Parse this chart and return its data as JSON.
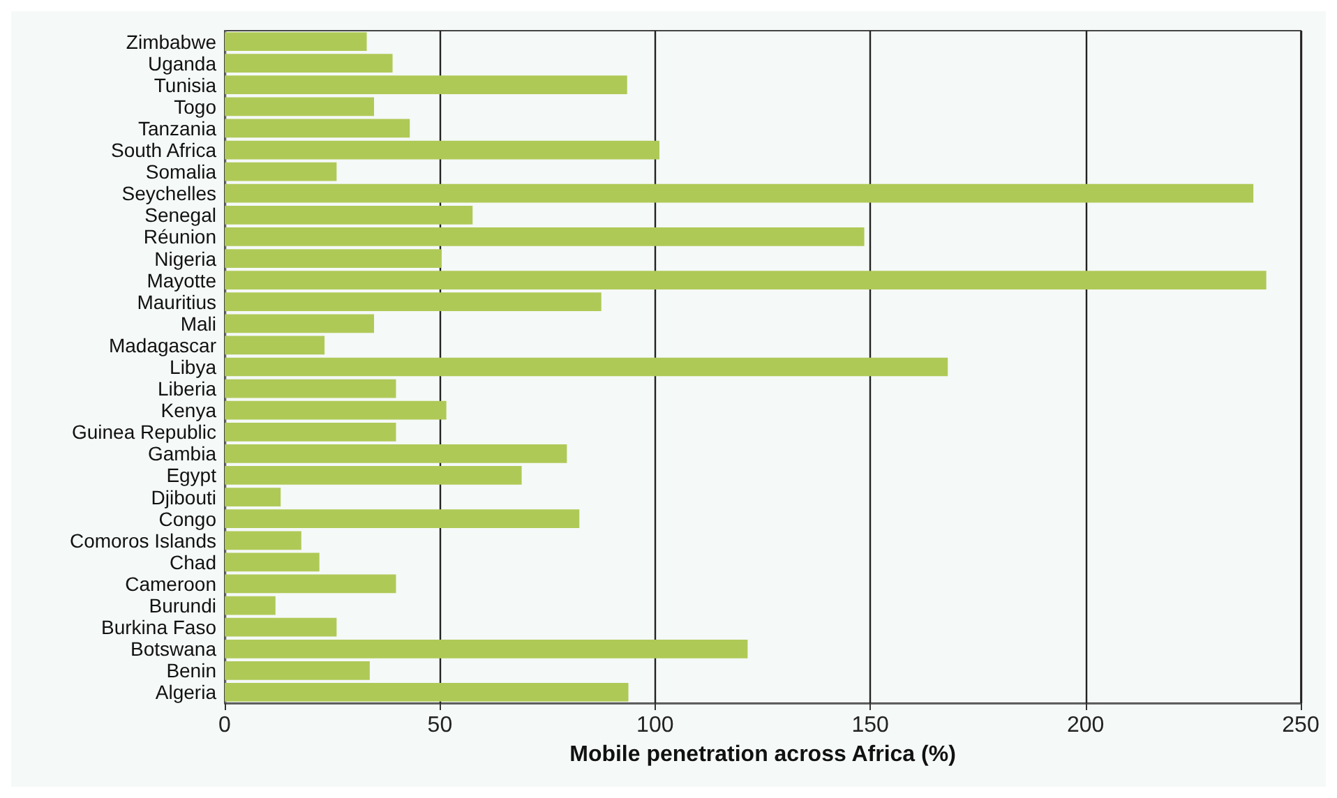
{
  "chart_data": {
    "type": "bar",
    "orientation": "horizontal",
    "xlabel": "Mobile penetration across Africa (%)",
    "categories": [
      "Zimbabwe",
      "Uganda",
      "Tunisia",
      "Togo",
      "Tanzania",
      "South Africa",
      "Somalia",
      "Seychelles",
      "Senegal",
      "Réunion",
      "Nigeria",
      "Mayotte",
      "Mauritius",
      "Mali",
      "Madagascar",
      "Libya",
      "Liberia",
      "Kenya",
      "Guinea Republic",
      "Gambia",
      "Egypt",
      "Djibouti",
      "Congo",
      "Comoros Islands",
      "Chad",
      "Cameroon",
      "Burundi",
      "Burkina Faso",
      "Botswana",
      "Benin",
      "Algeria"
    ],
    "values": [
      33,
      39,
      93.5,
      34.7,
      43,
      101,
      26,
      239,
      57.6,
      148.6,
      50.4,
      242,
      87.5,
      34.7,
      23.2,
      168,
      39.8,
      51.5,
      39.8,
      79.5,
      69,
      13,
      82.4,
      17.8,
      22,
      39.8,
      11.8,
      26,
      121.5,
      33.7,
      93.8
    ],
    "color": "#afc957",
    "xlim": [
      0,
      250
    ],
    "xticks": [
      0,
      50,
      100,
      150,
      200,
      250
    ],
    "grid": "x"
  }
}
